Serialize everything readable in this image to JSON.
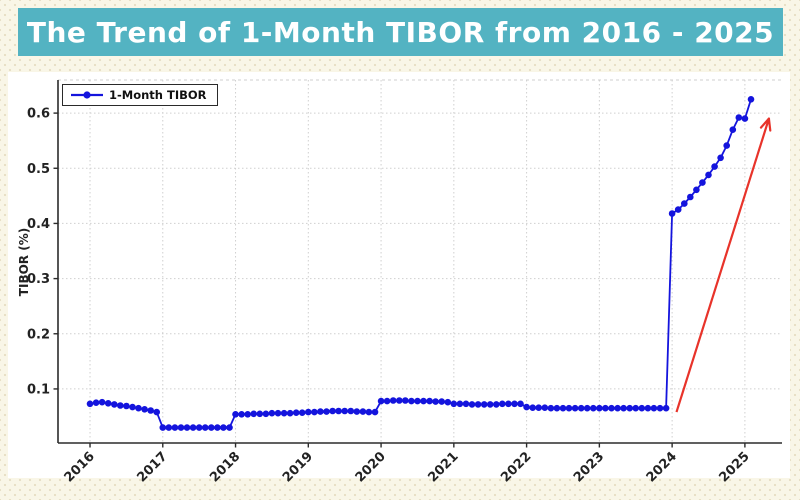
{
  "banner": {
    "title": "The Trend of 1-Month TIBOR from 2016 - 2025",
    "bg_color": "#53b3c2",
    "text_color": "#ffffff"
  },
  "chart": {
    "ylabel": "TIBOR (%)",
    "legend_label": "1-Month TIBOR",
    "line_color": "#1414dd",
    "marker_color": "#1414dd",
    "arrow_color": "#e8332a",
    "grid_color": "#cfcfcf",
    "spine_color": "#2b2b2b",
    "tick_text_color": "#222222",
    "plot_bg": "#ffffff"
  },
  "chart_data": {
    "type": "line",
    "title": "The Trend of 1-Month TIBOR from 2016 - 2025",
    "xlabel": "",
    "ylabel": "TIBOR (%)",
    "frequency": "monthly",
    "x_ticks": [
      2016,
      2017,
      2018,
      2019,
      2020,
      2021,
      2022,
      2023,
      2024,
      2025
    ],
    "x_tick_labels": [
      "2016",
      "2017",
      "2018",
      "2019",
      "2020",
      "2021",
      "2022",
      "2023",
      "2024",
      "2025"
    ],
    "y_ticks": [
      0.1,
      0.2,
      0.3,
      0.4,
      0.5,
      0.6
    ],
    "y_tick_labels": [
      "0.1",
      "0.2",
      "0.3",
      "0.4",
      "0.5",
      "0.6"
    ],
    "xlim": [
      2015.56,
      2025.51
    ],
    "ylim": [
      0.002,
      0.66
    ],
    "grid": true,
    "legend_position": "upper left",
    "series": [
      {
        "name": "1-Month TIBOR",
        "values_by_year": {
          "2016": [
            0.073,
            0.075,
            0.076,
            0.074,
            0.072,
            0.07,
            0.069,
            0.067,
            0.065,
            0.063,
            0.061,
            0.058
          ],
          "2017": [
            0.03,
            0.03,
            0.03,
            0.03,
            0.03,
            0.03,
            0.03,
            0.03,
            0.03,
            0.03,
            0.03,
            0.03
          ],
          "2018": [
            0.054,
            0.054,
            0.054,
            0.055,
            0.055,
            0.055,
            0.056,
            0.056,
            0.056,
            0.056,
            0.057,
            0.057
          ],
          "2019": [
            0.058,
            0.058,
            0.059,
            0.059,
            0.06,
            0.06,
            0.06,
            0.06,
            0.059,
            0.059,
            0.058,
            0.058
          ],
          "2020": [
            0.078,
            0.078,
            0.079,
            0.079,
            0.079,
            0.078,
            0.078,
            0.078,
            0.078,
            0.077,
            0.077,
            0.076
          ],
          "2021": [
            0.073,
            0.073,
            0.073,
            0.072,
            0.072,
            0.072,
            0.072,
            0.072,
            0.073,
            0.073,
            0.073,
            0.073
          ],
          "2022": [
            0.067,
            0.066,
            0.066,
            0.066,
            0.065,
            0.065,
            0.065,
            0.065,
            0.065,
            0.065,
            0.065,
            0.065
          ],
          "2023": [
            0.065,
            0.065,
            0.065,
            0.065,
            0.065,
            0.065,
            0.065,
            0.065,
            0.065,
            0.065,
            0.065,
            0.065
          ],
          "2024": [
            0.418,
            0.425,
            0.436,
            0.448,
            0.461,
            0.474,
            0.488,
            0.503,
            0.519,
            0.541,
            0.57,
            0.592
          ],
          "2025": [
            0.59,
            0.625
          ]
        }
      }
    ],
    "annotation_arrow": {
      "x_start": 2024.06,
      "y_start": 0.058,
      "x_end": 2025.33,
      "y_end": 0.59
    }
  }
}
